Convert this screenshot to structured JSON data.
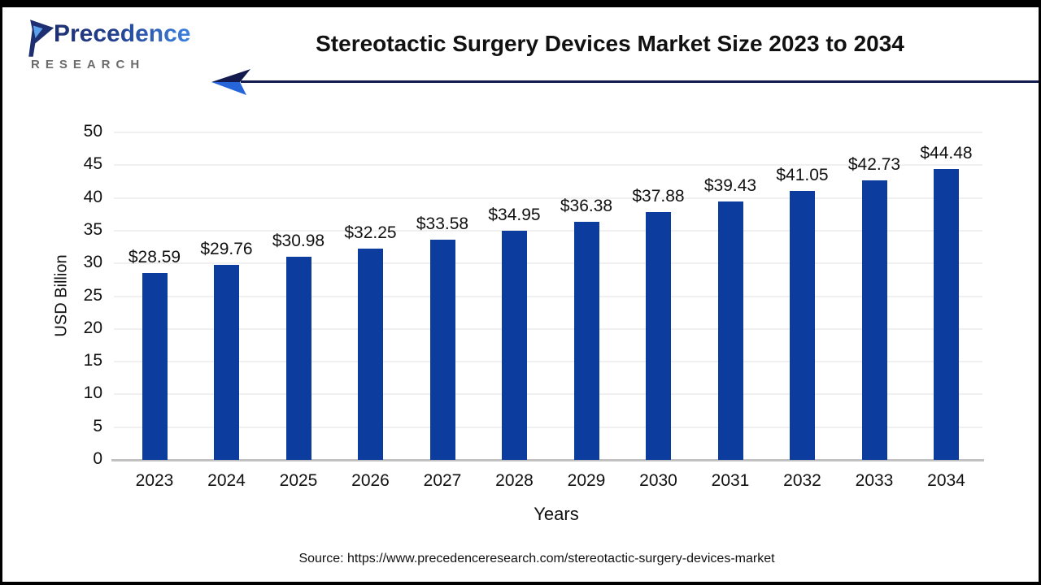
{
  "header": {
    "logo": {
      "brand": "Precedence",
      "subtext": "RESEARCH"
    },
    "title": "Stereotactic Surgery Devices Market Size 2023 to 2034"
  },
  "chart_data": {
    "type": "bar",
    "title": "Stereotactic Surgery Devices Market Size 2023 to 2034",
    "categories": [
      "2023",
      "2024",
      "2025",
      "2026",
      "2027",
      "2028",
      "2029",
      "2030",
      "2031",
      "2032",
      "2033",
      "2034"
    ],
    "values": [
      28.59,
      29.76,
      30.98,
      32.25,
      33.58,
      34.95,
      36.38,
      37.88,
      39.43,
      41.05,
      42.73,
      44.48
    ],
    "value_labels": [
      "$28.59",
      "$29.76",
      "$30.98",
      "$32.25",
      "$33.58",
      "$34.95",
      "$36.38",
      "$37.88",
      "$39.43",
      "$41.05",
      "$42.73",
      "$44.48"
    ],
    "xlabel": "Years",
    "ylabel": "USD Billion",
    "ylim": [
      0,
      50
    ],
    "yticks": [
      0,
      5,
      10,
      15,
      20,
      25,
      30,
      35,
      40,
      45,
      50
    ],
    "grid": true,
    "legend": "none",
    "bar_color": "#0c3c9e",
    "grid_color": "#f0f0f0",
    "axis_line_color": "#c1c1c1"
  },
  "decor": {
    "arrow_navy": "#131a4e",
    "arrow_blue": "#2565d9",
    "brand_navy": "#1e2f71",
    "brand_blue": "#3b82e0",
    "research_gray": "#6b6b6b"
  },
  "footer": {
    "source": "Source: https://www.precedenceresearch.com/stereotactic-surgery-devices-market"
  }
}
